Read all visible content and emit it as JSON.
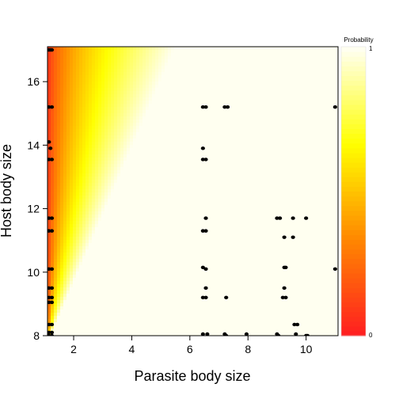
{
  "chart_data": {
    "type": "heatmap",
    "title": "",
    "xlabel": "Parasite body size",
    "ylabel": "Host body size",
    "xlim": [
      1.1,
      11.1
    ],
    "ylim": [
      8,
      17.1
    ],
    "x_ticks": [
      2,
      4,
      6,
      8,
      10
    ],
    "y_ticks": [
      8,
      10,
      12,
      14,
      16
    ],
    "surface": {
      "description": "probability rises toward small parasite / large host",
      "contour_1_line": [
        [
          1.2,
          8.0
        ],
        [
          5.5,
          17.1
        ]
      ]
    },
    "colorbar": {
      "title": "Probability",
      "min_label": "0",
      "max_label": "1",
      "colors": [
        "#ff2020",
        "#ff8800",
        "#ffff00",
        "#fffff0"
      ]
    },
    "points": [
      {
        "x": 1.15,
        "y": 17.0
      },
      {
        "x": 1.2,
        "y": 17.0
      },
      {
        "x": 1.25,
        "y": 17.0
      },
      {
        "x": 1.15,
        "y": 15.2
      },
      {
        "x": 1.25,
        "y": 15.2
      },
      {
        "x": 1.15,
        "y": 14.1
      },
      {
        "x": 1.2,
        "y": 13.9
      },
      {
        "x": 1.15,
        "y": 13.55
      },
      {
        "x": 1.25,
        "y": 13.55
      },
      {
        "x": 1.15,
        "y": 11.7
      },
      {
        "x": 1.25,
        "y": 11.7
      },
      {
        "x": 1.15,
        "y": 11.3
      },
      {
        "x": 1.25,
        "y": 11.3
      },
      {
        "x": 1.15,
        "y": 10.1
      },
      {
        "x": 1.25,
        "y": 10.1
      },
      {
        "x": 1.15,
        "y": 9.5
      },
      {
        "x": 1.25,
        "y": 9.5
      },
      {
        "x": 1.15,
        "y": 9.2
      },
      {
        "x": 1.25,
        "y": 9.2
      },
      {
        "x": 1.15,
        "y": 9.05
      },
      {
        "x": 1.25,
        "y": 9.05
      },
      {
        "x": 1.15,
        "y": 8.35
      },
      {
        "x": 1.25,
        "y": 8.35
      },
      {
        "x": 1.15,
        "y": 8.1
      },
      {
        "x": 1.25,
        "y": 8.1
      },
      {
        "x": 1.15,
        "y": 8.0
      },
      {
        "x": 1.25,
        "y": 8.0
      },
      {
        "x": 6.45,
        "y": 15.2
      },
      {
        "x": 6.55,
        "y": 15.2
      },
      {
        "x": 7.2,
        "y": 15.2
      },
      {
        "x": 7.3,
        "y": 15.2
      },
      {
        "x": 11.0,
        "y": 15.2
      },
      {
        "x": 6.45,
        "y": 13.9
      },
      {
        "x": 6.45,
        "y": 13.55
      },
      {
        "x": 6.55,
        "y": 13.55
      },
      {
        "x": 6.55,
        "y": 11.7
      },
      {
        "x": 6.45,
        "y": 11.3
      },
      {
        "x": 6.55,
        "y": 11.3
      },
      {
        "x": 6.45,
        "y": 10.15
      },
      {
        "x": 6.55,
        "y": 10.1
      },
      {
        "x": 6.55,
        "y": 9.5
      },
      {
        "x": 6.45,
        "y": 9.2
      },
      {
        "x": 6.55,
        "y": 9.2
      },
      {
        "x": 7.25,
        "y": 9.2
      },
      {
        "x": 6.45,
        "y": 8.05
      },
      {
        "x": 6.6,
        "y": 8.05
      },
      {
        "x": 7.2,
        "y": 8.05
      },
      {
        "x": 7.25,
        "y": 8.0
      },
      {
        "x": 7.95,
        "y": 8.05
      },
      {
        "x": 9.0,
        "y": 11.7
      },
      {
        "x": 9.1,
        "y": 11.7
      },
      {
        "x": 9.55,
        "y": 11.7
      },
      {
        "x": 10.0,
        "y": 11.7
      },
      {
        "x": 9.25,
        "y": 11.1
      },
      {
        "x": 9.55,
        "y": 11.1
      },
      {
        "x": 9.25,
        "y": 10.15
      },
      {
        "x": 9.3,
        "y": 10.15
      },
      {
        "x": 9.25,
        "y": 9.5
      },
      {
        "x": 9.2,
        "y": 9.2
      },
      {
        "x": 9.3,
        "y": 9.2
      },
      {
        "x": 9.6,
        "y": 8.35
      },
      {
        "x": 9.7,
        "y": 8.35
      },
      {
        "x": 9.0,
        "y": 8.05
      },
      {
        "x": 9.05,
        "y": 8.0
      },
      {
        "x": 9.65,
        "y": 8.05
      },
      {
        "x": 10.0,
        "y": 8.0
      },
      {
        "x": 10.05,
        "y": 8.0
      },
      {
        "x": 11.0,
        "y": 10.1
      }
    ]
  }
}
